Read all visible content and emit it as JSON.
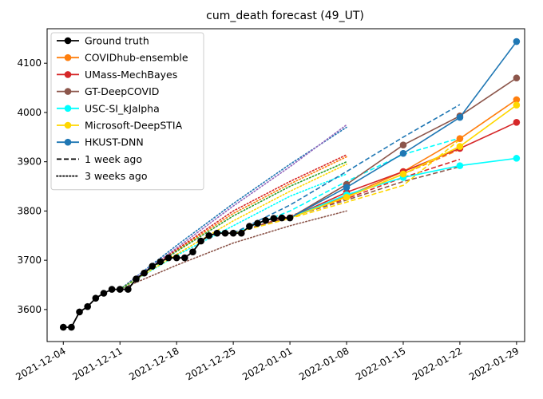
{
  "chart_data": {
    "type": "line",
    "title": "cum_death forecast (49_UT)",
    "xlabel": "",
    "ylabel": "",
    "xlim": [
      "2021-12-02",
      "2022-01-30"
    ],
    "ylim": [
      3535,
      4170
    ],
    "grid": false,
    "legend_position": "top-left",
    "x_ticks": [
      "2021-12-04",
      "2021-12-11",
      "2021-12-18",
      "2021-12-25",
      "2022-01-01",
      "2022-01-08",
      "2022-01-15",
      "2022-01-22",
      "2022-01-29"
    ],
    "y_ticks": [
      3600,
      3700,
      3800,
      3900,
      4000,
      4100
    ],
    "legend": [
      {
        "label": "Ground truth",
        "color": "#000000",
        "style": "solid",
        "marker": true
      },
      {
        "label": "COVIDhub-ensemble",
        "color": "#ff7f0e",
        "style": "solid",
        "marker": true
      },
      {
        "label": "UMass-MechBayes",
        "color": "#d62728",
        "style": "solid",
        "marker": true
      },
      {
        "label": "GT-DeepCOVID",
        "color": "#8c564b",
        "style": "solid",
        "marker": true
      },
      {
        "label": "USC-SI_kJalpha",
        "color": "#00ffff",
        "style": "solid",
        "marker": true
      },
      {
        "label": "Microsoft-DeepSTIA",
        "color": "#ffd700",
        "style": "solid",
        "marker": true
      },
      {
        "label": "HKUST-DNN",
        "color": "#1f77b4",
        "style": "solid",
        "marker": true
      },
      {
        "label": "1 week ago",
        "color": "#000000",
        "style": "dashed",
        "marker": false
      },
      {
        "label": "3 weeks ago",
        "color": "#000000",
        "style": "dotted",
        "marker": false
      }
    ],
    "ground_truth": {
      "x": [
        "2021-12-04",
        "2021-12-05",
        "2021-12-06",
        "2021-12-07",
        "2021-12-08",
        "2021-12-09",
        "2021-12-10",
        "2021-12-11",
        "2021-12-12",
        "2021-12-13",
        "2021-12-14",
        "2021-12-15",
        "2021-12-16",
        "2021-12-17",
        "2021-12-18",
        "2021-12-19",
        "2021-12-20",
        "2021-12-21",
        "2021-12-22",
        "2021-12-23",
        "2021-12-24",
        "2021-12-25",
        "2021-12-26",
        "2021-12-27",
        "2021-12-28",
        "2021-12-29",
        "2021-12-30",
        "2021-12-31",
        "2022-01-01"
      ],
      "y": [
        3564,
        3564,
        3595,
        3606,
        3623,
        3633,
        3641,
        3641,
        3641,
        3662,
        3674,
        3688,
        3697,
        3705,
        3705,
        3705,
        3717,
        3739,
        3750,
        3755,
        3755,
        3755,
        3755,
        3769,
        3775,
        3781,
        3785,
        3786,
        3786
      ]
    },
    "series": [
      {
        "name": "COVIDhub-ensemble",
        "color": "#ff7f0e",
        "x": [
          "2022-01-01",
          "2022-01-08",
          "2022-01-15",
          "2022-01-22",
          "2022-01-29"
        ],
        "y": [
          3786,
          3830,
          3880,
          3947,
          4026
        ]
      },
      {
        "name": "UMass-MechBayes",
        "color": "#d62728",
        "x": [
          "2022-01-01",
          "2022-01-08",
          "2022-01-15",
          "2022-01-22",
          "2022-01-29"
        ],
        "y": [
          3786,
          3838,
          3880,
          3927,
          3980
        ]
      },
      {
        "name": "GT-DeepCOVID",
        "color": "#8c564b",
        "x": [
          "2022-01-01",
          "2022-01-08",
          "2022-01-15",
          "2022-01-22",
          "2022-01-29"
        ],
        "y": [
          3786,
          3854,
          3934,
          3993,
          4070
        ]
      },
      {
        "name": "USC-SI_kJalpha",
        "color": "#00ffff",
        "x": [
          "2022-01-01",
          "2022-01-08",
          "2022-01-15",
          "2022-01-22",
          "2022-01-29"
        ],
        "y": [
          3786,
          3833,
          3868,
          3892,
          3907
        ]
      },
      {
        "name": "Microsoft-DeepSTIA",
        "color": "#ffd700",
        "x": [
          "2022-01-01",
          "2022-01-08",
          "2022-01-15",
          "2022-01-22",
          "2022-01-29"
        ],
        "y": [
          3786,
          3828,
          3875,
          3931,
          4015
        ]
      },
      {
        "name": "HKUST-DNN",
        "color": "#1f77b4",
        "x": [
          "2022-01-01",
          "2022-01-08",
          "2022-01-15",
          "2022-01-22",
          "2022-01-29"
        ],
        "y": [
          3786,
          3848,
          3917,
          3990,
          4144
        ]
      }
    ],
    "forecasts_1_week_ago": [
      {
        "color": "#ff7f0e",
        "x": [
          "2021-12-25",
          "2022-01-01",
          "2022-01-08",
          "2022-01-15",
          "2022-01-22"
        ],
        "y": [
          3755,
          3790,
          3828,
          3875,
          3925
        ]
      },
      {
        "color": "#d62728",
        "x": [
          "2021-12-25",
          "2022-01-01",
          "2022-01-08",
          "2022-01-15",
          "2022-01-22"
        ],
        "y": [
          3755,
          3790,
          3825,
          3868,
          3905
        ]
      },
      {
        "color": "#8c564b",
        "x": [
          "2021-12-25",
          "2022-01-01",
          "2022-01-08",
          "2022-01-15",
          "2022-01-22"
        ],
        "y": [
          3755,
          3788,
          3822,
          3860,
          3890
        ]
      },
      {
        "color": "#00ffff",
        "x": [
          "2021-12-25",
          "2022-01-01",
          "2022-01-08",
          "2022-01-15",
          "2022-01-22"
        ],
        "y": [
          3755,
          3800,
          3860,
          3915,
          3948
        ]
      },
      {
        "color": "#ffd700",
        "x": [
          "2021-12-25",
          "2022-01-01",
          "2022-01-08",
          "2022-01-15",
          "2022-01-22"
        ],
        "y": [
          3755,
          3785,
          3818,
          3852,
          3945
        ]
      },
      {
        "color": "#1f77b4",
        "x": [
          "2021-12-25",
          "2022-01-01",
          "2022-01-08",
          "2022-01-15",
          "2022-01-22"
        ],
        "y": [
          3755,
          3812,
          3880,
          3950,
          4016
        ]
      }
    ],
    "forecasts_3_weeks_ago": [
      {
        "color": "#ff7f0e",
        "x": [
          "2021-12-11",
          "2021-12-18",
          "2021-12-25",
          "2022-01-01",
          "2022-01-08"
        ],
        "y": [
          3641,
          3720,
          3795,
          3855,
          3910
        ]
      },
      {
        "color": "#d62728",
        "x": [
          "2021-12-11",
          "2021-12-18",
          "2021-12-25",
          "2022-01-01",
          "2022-01-08"
        ],
        "y": [
          3641,
          3722,
          3800,
          3860,
          3914
        ]
      },
      {
        "color": "#8c564b",
        "x": [
          "2021-12-11",
          "2021-12-18",
          "2021-12-25",
          "2022-01-01",
          "2022-01-08"
        ],
        "y": [
          3641,
          3690,
          3735,
          3770,
          3800
        ]
      },
      {
        "color": "#00ffff",
        "x": [
          "2021-12-11",
          "2021-12-18",
          "2021-12-25",
          "2022-01-01",
          "2022-01-08"
        ],
        "y": [
          3641,
          3710,
          3770,
          3830,
          3875
        ]
      },
      {
        "color": "#ffd700",
        "x": [
          "2021-12-11",
          "2021-12-18",
          "2021-12-25",
          "2022-01-01",
          "2022-01-08"
        ],
        "y": [
          3641,
          3712,
          3780,
          3840,
          3895
        ]
      },
      {
        "color": "#1f77b4",
        "x": [
          "2021-12-11",
          "2021-12-18",
          "2021-12-25",
          "2022-01-01",
          "2022-01-08"
        ],
        "y": [
          3641,
          3730,
          3815,
          3895,
          3970
        ]
      },
      {
        "color": "#9467bd",
        "x": [
          "2021-12-11",
          "2021-12-18",
          "2021-12-25",
          "2022-01-01",
          "2022-01-08"
        ],
        "y": [
          3641,
          3725,
          3810,
          3890,
          3975
        ]
      },
      {
        "color": "#2ca02c",
        "x": [
          "2021-12-11",
          "2021-12-18",
          "2021-12-25",
          "2022-01-01",
          "2022-01-08"
        ],
        "y": [
          3641,
          3718,
          3790,
          3850,
          3900
        ]
      }
    ]
  }
}
